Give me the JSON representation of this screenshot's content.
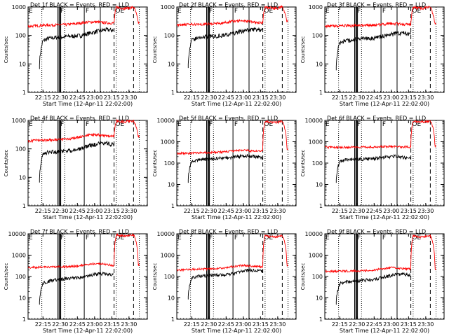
{
  "common": {
    "ylabel": "Counts/sec",
    "xlabel": "Start Time (12-Apr-11 22:02:00)",
    "xticks": [
      "22:15",
      "22:30",
      "22:45",
      "23:00",
      "23:15",
      "23:30"
    ],
    "x_tick_minutes": [
      13,
      28,
      43,
      58,
      73,
      88
    ],
    "x_range_minutes": [
      0,
      104
    ],
    "yscale": "log",
    "colors": {
      "events": "#000000",
      "lld": "#ff0000",
      "axes": "#000000"
    },
    "series_legend": {
      "events": "BLACK = Events",
      "lld": "RED = LLD"
    },
    "markers": {
      "dotted": [
        12,
        32,
        77,
        97
      ],
      "solid": [
        26,
        27,
        27.8,
        28.5,
        49,
        63
      ],
      "dashed": [
        75,
        92
      ],
      "letters": [
        {
          "text": "E",
          "x": 0
        },
        {
          "text": "F",
          "x": 27.5
        },
        {
          "text": "F",
          "x": 49.5
        },
        {
          "text": "OE",
          "x": 75.5
        }
      ]
    }
  },
  "chart_data": [
    {
      "type": "line",
      "title": "Det 1f BLACK = Events, RED = LLD",
      "ylim": [
        1,
        1000
      ],
      "yticks": [
        "1",
        "10",
        "100",
        "1000"
      ],
      "series": [
        {
          "name": "Events",
          "base": [
            55,
            78,
            85,
            90,
            95,
            100,
            120,
            140,
            160,
            150
          ],
          "start": 10
        },
        {
          "name": "LLD",
          "base": [
            210,
            220,
            230,
            235,
            240,
            260,
            290,
            300,
            280,
            270
          ],
          "start": 0,
          "rise": 1000,
          "end": 280
        }
      ]
    },
    {
      "type": "line",
      "title": "Det 2f BLACK = Events, RED = LLD",
      "ylim": [
        1,
        1000
      ],
      "yticks": [
        "1",
        "10",
        "100",
        "1000"
      ],
      "series": [
        {
          "name": "Events",
          "base": [
            60,
            80,
            90,
            95,
            100,
            110,
            130,
            150,
            165,
            150
          ],
          "start": 10
        },
        {
          "name": "LLD",
          "base": [
            230,
            240,
            250,
            255,
            260,
            280,
            320,
            330,
            300,
            280
          ],
          "start": 0,
          "rise": 1000,
          "end": 300
        }
      ]
    },
    {
      "type": "line",
      "title": "Det 3f BLACK = Events, RED = LLD",
      "ylim": [
        1,
        1000
      ],
      "yticks": [
        "1",
        "10",
        "100",
        "1000"
      ],
      "series": [
        {
          "name": "Events",
          "base": [
            50,
            65,
            70,
            75,
            80,
            85,
            100,
            115,
            125,
            115
          ],
          "start": 10
        },
        {
          "name": "LLD",
          "base": [
            210,
            215,
            220,
            220,
            225,
            235,
            250,
            260,
            250,
            240
          ],
          "start": 0,
          "rise": 1000,
          "end": 250
        }
      ]
    },
    {
      "type": "line",
      "title": "Det 4f BLACK = Events, RED = LLD",
      "ylim": [
        1,
        1000
      ],
      "yticks": [
        "1",
        "10",
        "100",
        "1000"
      ],
      "series": [
        {
          "name": "Events",
          "base": [
            55,
            75,
            80,
            85,
            90,
            100,
            130,
            150,
            160,
            140
          ],
          "start": 10
        },
        {
          "name": "LLD",
          "base": [
            190,
            200,
            205,
            210,
            215,
            240,
            300,
            320,
            290,
            270
          ],
          "start": 0,
          "rise": 1000,
          "end": 280
        }
      ]
    },
    {
      "type": "line",
      "title": "Det 5f BLACK = Events, RED = LLD",
      "ylim": [
        1,
        10000
      ],
      "yticks": [
        "1",
        "10",
        "100",
        "1000",
        "10000"
      ],
      "series": [
        {
          "name": "Events",
          "base": [
            100,
            140,
            150,
            160,
            170,
            180,
            200,
            220,
            200,
            180
          ],
          "start": 10
        },
        {
          "name": "LLD",
          "base": [
            280,
            290,
            300,
            310,
            320,
            340,
            380,
            400,
            370,
            360
          ],
          "start": 0,
          "rise": 9000,
          "end": 400
        }
      ]
    },
    {
      "type": "line",
      "title": "Det 6f BLACK = Events, RED = LLD",
      "ylim": [
        1,
        10000
      ],
      "yticks": [
        "1",
        "10",
        "100",
        "1000",
        "10000"
      ],
      "series": [
        {
          "name": "Events",
          "base": [
            100,
            140,
            150,
            155,
            160,
            170,
            190,
            210,
            190,
            170
          ],
          "start": 10
        },
        {
          "name": "LLD",
          "base": [
            550,
            555,
            560,
            560,
            565,
            570,
            590,
            600,
            580,
            570
          ],
          "start": 0,
          "rise": 9500,
          "end": 600
        }
      ]
    },
    {
      "type": "line",
      "title": "Det 7f BLACK = Events, RED = LLD",
      "ylim": [
        1,
        10000
      ],
      "yticks": [
        "1",
        "10",
        "100",
        "1000",
        "10000"
      ],
      "series": [
        {
          "name": "Events",
          "base": [
            40,
            60,
            70,
            80,
            85,
            90,
            110,
            130,
            140,
            120
          ],
          "start": 10
        },
        {
          "name": "LLD",
          "base": [
            260,
            270,
            280,
            285,
            290,
            300,
            360,
            400,
            380,
            330
          ],
          "start": 0,
          "rise": 9000,
          "end": 350
        }
      ]
    },
    {
      "type": "line",
      "title": "Det 8f BLACK = Events, RED = LLD",
      "ylim": [
        1,
        10000
      ],
      "yticks": [
        "1",
        "10",
        "100",
        "1000",
        "10000"
      ],
      "series": [
        {
          "name": "Events",
          "base": [
            70,
            100,
            110,
            115,
            120,
            130,
            160,
            190,
            200,
            170
          ],
          "start": 10
        },
        {
          "name": "LLD",
          "base": [
            200,
            210,
            220,
            225,
            230,
            250,
            300,
            330,
            310,
            280
          ],
          "start": 0,
          "rise": 8000,
          "end": 300
        }
      ]
    },
    {
      "type": "line",
      "title": "Det 9f BLACK = Events, RED = LLD",
      "ylim": [
        1,
        10000
      ],
      "yticks": [
        "1",
        "10",
        "100",
        "1000",
        "10000"
      ],
      "series": [
        {
          "name": "Events",
          "base": [
            40,
            55,
            60,
            65,
            70,
            80,
            100,
            120,
            130,
            110
          ],
          "start": 10
        },
        {
          "name": "LLD",
          "base": [
            170,
            175,
            180,
            180,
            185,
            195,
            230,
            260,
            240,
            220
          ],
          "start": 0,
          "rise": 8000,
          "end": 230
        }
      ]
    }
  ]
}
